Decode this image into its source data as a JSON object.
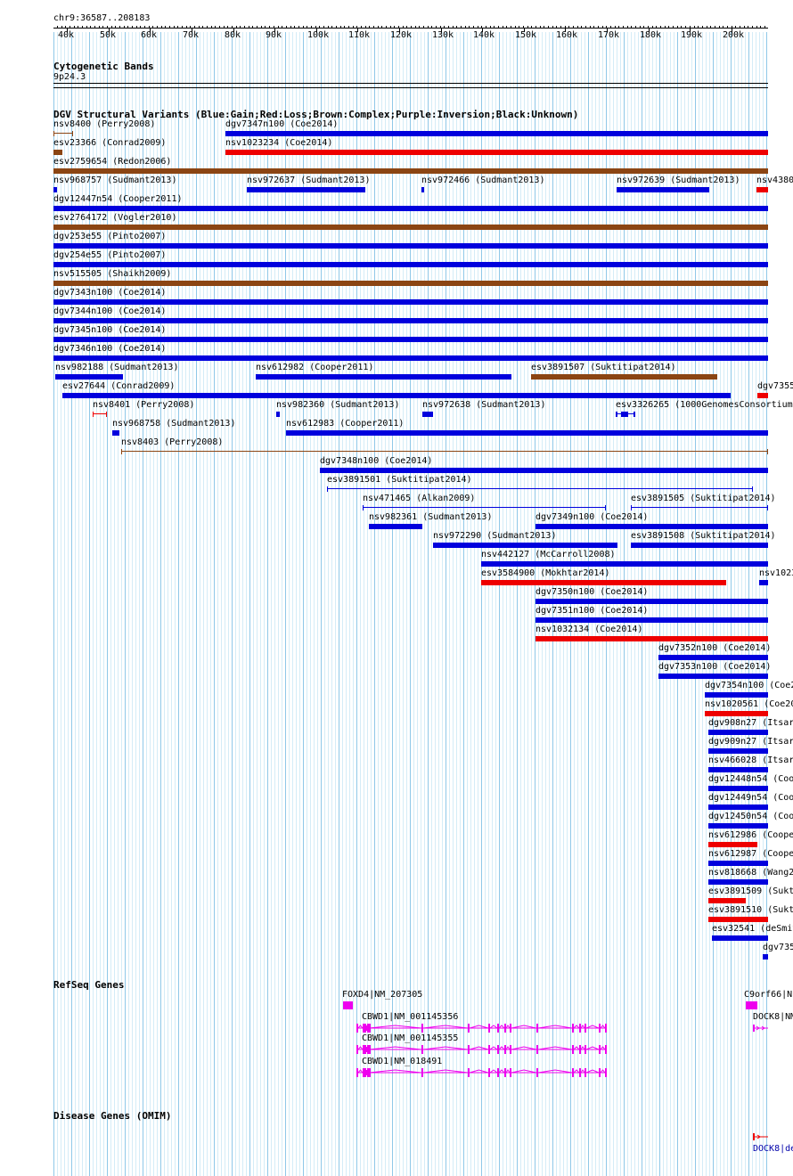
{
  "header": {
    "region": "chr9:36587..208183"
  },
  "ruler": {
    "ticks": [
      "40k",
      "50k",
      "60k",
      "70k",
      "80k",
      "90k",
      "100k",
      "110k",
      "120k",
      "130k",
      "140k",
      "150k",
      "160k",
      "170k",
      "180k",
      "190k",
      "200k"
    ]
  },
  "cytobands": {
    "title": "Cytogenetic Bands",
    "band": "9p24.3"
  },
  "dgv": {
    "title": "DGV Structural Variants (Blue:Gain;Red:Loss;Brown:Complex;Purple:Inversion;Black:Unknown)",
    "colors": {
      "gain": "#0000dd",
      "loss": "#ee0000",
      "complex": "#8b4513",
      "inversion": "#800080",
      "unknown": "#000000"
    },
    "variants": [
      {
        "label": "nsv8400 (Perry2008)",
        "type": "complex"
      },
      {
        "label": "dgv7347n100 (Coe2014)",
        "type": "gain"
      },
      {
        "label": "esv23366 (Conrad2009)",
        "type": "complex"
      },
      {
        "label": "nsv1023234 (Coe2014)",
        "type": "loss"
      },
      {
        "label": "esv2759654 (Redon2006)",
        "type": "complex"
      },
      {
        "label": "nsv968757 (Sudmant2013)",
        "type": "gain"
      },
      {
        "label": "nsv972637 (Sudmant2013)",
        "type": "gain"
      },
      {
        "label": "nsv972466 (Sudmant2013)",
        "type": "gain"
      },
      {
        "label": "nsv972639 (Sudmant2013)",
        "type": "gain"
      },
      {
        "label": "nsv4380",
        "type": "loss"
      },
      {
        "label": "dgv12447n54 (Cooper2011)",
        "type": "gain"
      },
      {
        "label": "esv2764172 (Vogler2010)",
        "type": "complex"
      },
      {
        "label": "dgv253e55 (Pinto2007)",
        "type": "gain"
      },
      {
        "label": "dgv254e55 (Pinto2007)",
        "type": "gain"
      },
      {
        "label": "nsv515505 (Shaikh2009)",
        "type": "complex"
      },
      {
        "label": "dgv7343n100 (Coe2014)",
        "type": "gain"
      },
      {
        "label": "dgv7344n100 (Coe2014)",
        "type": "gain"
      },
      {
        "label": "dgv7345n100 (Coe2014)",
        "type": "gain"
      },
      {
        "label": "dgv7346n100 (Coe2014)",
        "type": "gain"
      },
      {
        "label": "nsv982188 (Sudmant2013)",
        "type": "gain"
      },
      {
        "label": "nsv612982 (Cooper2011)",
        "type": "gain"
      },
      {
        "label": "esv3891507 (Suktitipat2014)",
        "type": "complex"
      },
      {
        "label": "esv27644 (Conrad2009)",
        "type": "gain"
      },
      {
        "label": "dgv7355",
        "type": "loss"
      },
      {
        "label": "nsv8401 (Perry2008)",
        "type": "loss"
      },
      {
        "label": "nsv982360 (Sudmant2013)",
        "type": "gain"
      },
      {
        "label": "nsv972638 (Sudmant2013)",
        "type": "gain"
      },
      {
        "label": "esv3326265 (1000GenomesConsortium",
        "type": "gain"
      },
      {
        "label": "nsv968758 (Sudmant2013)",
        "type": "gain"
      },
      {
        "label": "nsv612983 (Cooper2011)",
        "type": "gain"
      },
      {
        "label": "nsv8403 (Perry2008)",
        "type": "complex"
      },
      {
        "label": "dgv7348n100 (Coe2014)",
        "type": "gain"
      },
      {
        "label": "esv3891501 (Suktitipat2014)",
        "type": "gain"
      },
      {
        "label": "nsv471465 (Alkan2009)",
        "type": "gain"
      },
      {
        "label": "esv3891505 (Suktitipat2014)",
        "type": "gain"
      },
      {
        "label": "nsv982361 (Sudmant2013)",
        "type": "gain"
      },
      {
        "label": "dgv7349n100 (Coe2014)",
        "type": "gain"
      },
      {
        "label": "nsv972290 (Sudmant2013)",
        "type": "gain"
      },
      {
        "label": "esv3891508 (Suktitipat2014)",
        "type": "gain"
      },
      {
        "label": "nsv442127 (McCarroll2008)",
        "type": "gain"
      },
      {
        "label": "esv3584900 (Mokhtar2014)",
        "type": "loss"
      },
      {
        "label": "nsv1023",
        "type": "gain"
      },
      {
        "label": "dgv7350n100 (Coe2014)",
        "type": "gain"
      },
      {
        "label": "dgv7351n100 (Coe2014)",
        "type": "gain"
      },
      {
        "label": "nsv1032134 (Coe2014)",
        "type": "loss"
      },
      {
        "label": "dgv7352n100 (Coe2014)",
        "type": "gain"
      },
      {
        "label": "dgv7353n100 (Coe2014)",
        "type": "gain"
      },
      {
        "label": "dgv7354n100 (Coe2",
        "type": "gain"
      },
      {
        "label": "nsv1020561 (Coe20",
        "type": "loss"
      },
      {
        "label": "dgv908n27 (Itsar",
        "type": "gain"
      },
      {
        "label": "dgv909n27 (Itsar",
        "type": "gain"
      },
      {
        "label": "nsv466028 (Itsar",
        "type": "gain"
      },
      {
        "label": "dgv12448n54 (Coo",
        "type": "gain"
      },
      {
        "label": "dgv12449n54 (Coo",
        "type": "gain"
      },
      {
        "label": "dgv12450n54 (Coo",
        "type": "gain"
      },
      {
        "label": "nsv612986 (Coope",
        "type": "loss"
      },
      {
        "label": "nsv612987 (Coope",
        "type": "gain"
      },
      {
        "label": "nsv818668 (Wang2",
        "type": "gain"
      },
      {
        "label": "esv3891509 (Sukt",
        "type": "loss"
      },
      {
        "label": "esv3891510 (Sukt",
        "type": "loss"
      },
      {
        "label": "esv32541 (deSmit",
        "type": "gain"
      },
      {
        "label": "dgv735",
        "type": "gain"
      }
    ]
  },
  "refseq": {
    "title": "RefSeq Genes",
    "color": "#ee00ee",
    "genes": [
      {
        "label": "FOXD4|NM_207305"
      },
      {
        "label": "C9orf66|N"
      },
      {
        "label": "CBWD1|NM_001145356"
      },
      {
        "label": "DOCK8|NM"
      },
      {
        "label": "CBWD1|NM_001145355"
      },
      {
        "label": "CBWD1|NM_018491"
      }
    ]
  },
  "disease": {
    "title": "Disease Genes (OMIM)",
    "genes": [
      {
        "label": "DOCK8|de",
        "color": "#ee0000"
      }
    ]
  }
}
